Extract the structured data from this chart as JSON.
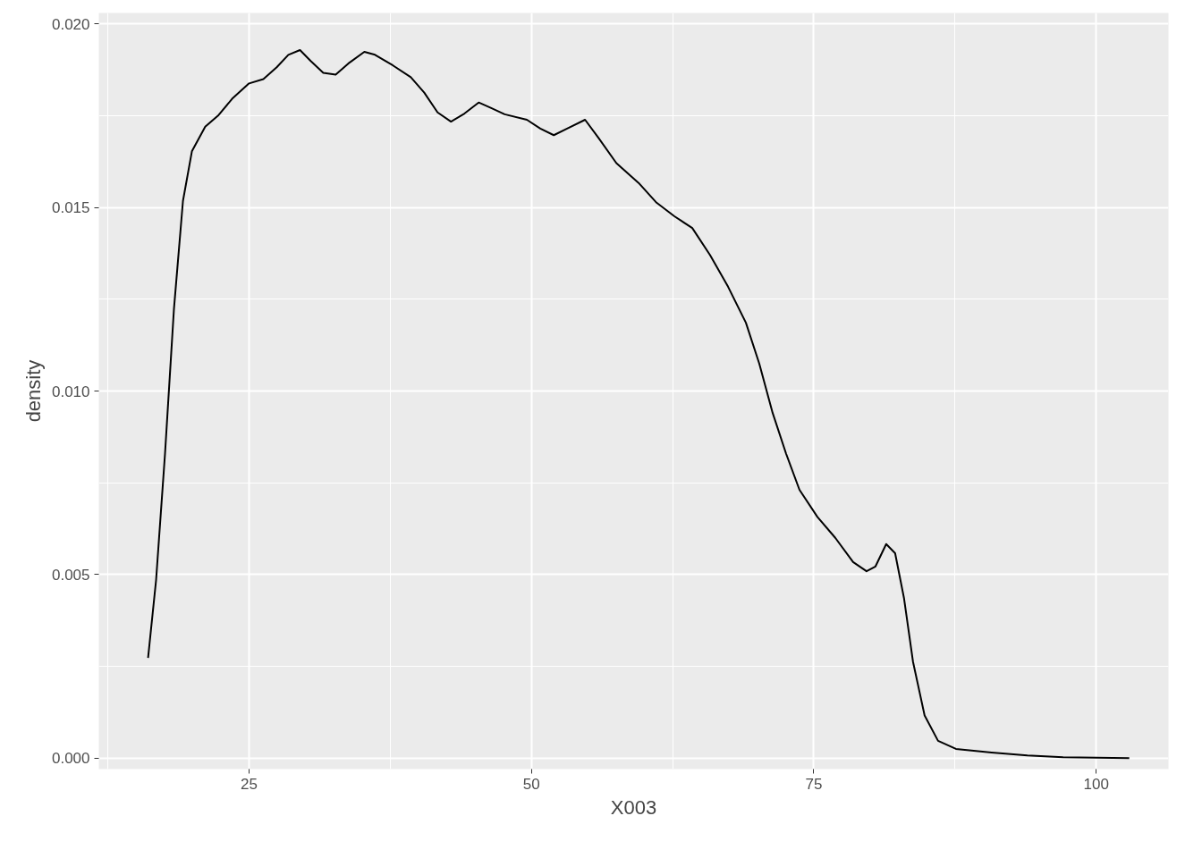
{
  "chart_data": {
    "type": "line",
    "xlabel": "X003",
    "ylabel": "density",
    "x": [
      16.06,
      16.77,
      17.56,
      18.35,
      19.15,
      19.94,
      21.12,
      22.31,
      23.5,
      25,
      26.27,
      27.45,
      28.48,
      29.51,
      30.46,
      31.57,
      32.67,
      33.78,
      35.21,
      36.15,
      37.74,
      39.32,
      40.51,
      41.69,
      42.88,
      44.07,
      45.33,
      46.44,
      47.63,
      49.6,
      50.79,
      51.98,
      53.16,
      54.75,
      55.93,
      57.52,
      59.49,
      61.08,
      62.66,
      64.24,
      65.82,
      67.41,
      68.99,
      70.17,
      71.36,
      72.55,
      73.73,
      75.32,
      76.9,
      78.48,
      79.67,
      80.46,
      81.41,
      82.2,
      82.99,
      83.78,
      84.81,
      86.0,
      87.58,
      90.74,
      93.91,
      97.07,
      102.93
    ],
    "series": [
      {
        "color": "#000000",
        "values": [
          0.00273,
          0.00485,
          0.00829,
          0.01223,
          0.01518,
          0.01653,
          0.0172,
          0.01752,
          0.01796,
          0.01838,
          0.0185,
          0.01882,
          0.01916,
          0.01929,
          0.01899,
          0.01867,
          0.01862,
          0.01892,
          0.01924,
          0.01916,
          0.01887,
          0.01855,
          0.01813,
          0.01759,
          0.01734,
          0.01756,
          0.01786,
          0.01771,
          0.01754,
          0.01739,
          0.01715,
          0.01697,
          0.01715,
          0.01739,
          0.0169,
          0.01621,
          0.01567,
          0.01513,
          0.01476,
          0.01444,
          0.0137,
          0.01284,
          0.01186,
          0.01075,
          0.0094,
          0.00829,
          0.00731,
          0.00657,
          0.006,
          0.00534,
          0.00509,
          0.00522,
          0.00583,
          0.00558,
          0.00435,
          0.00263,
          0.00116,
          0.00047,
          0.00025,
          0.00015,
          7e-05,
          2e-05,
          0.0
        ]
      }
    ],
    "xlim": [
      11.7,
      106.4
    ],
    "ylim": [
      -0.0003,
      0.0203
    ],
    "xticks": [
      25,
      50,
      75,
      100
    ],
    "yticks": [
      {
        "value": 0,
        "label": "0.000"
      },
      {
        "value": 0.005,
        "label": "0.005"
      },
      {
        "value": 0.01,
        "label": "0.010"
      },
      {
        "value": 0.015,
        "label": "0.015"
      },
      {
        "value": 0.02,
        "label": "0.020"
      }
    ],
    "grid": true,
    "line_style": "solid"
  }
}
